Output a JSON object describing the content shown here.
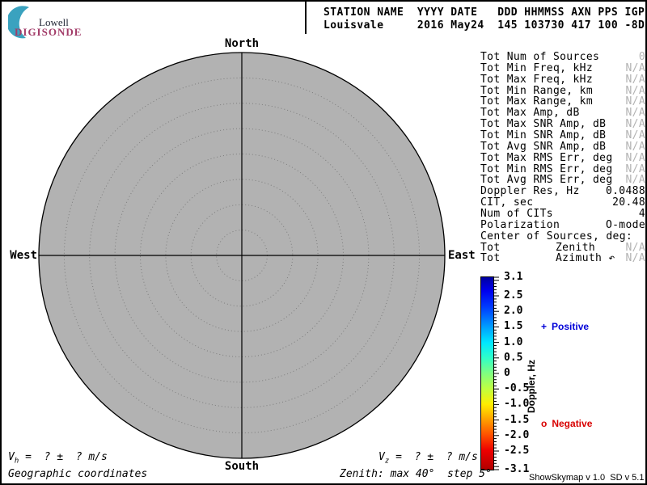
{
  "logo": {
    "line1": "Lowell",
    "line2": "DIGISONDE",
    "crescent_color": "#3aa2bf",
    "line1_color": "#1f2433",
    "line2_color": "#a23b68"
  },
  "header": {
    "line1": "STATION NAME  YYYY DATE   DDD HHMMSS AXN PPS IGP",
    "line2": "Louisvale     2016 May24  145 103730 417 100 -8D"
  },
  "compass": {
    "north": "North",
    "south": "South",
    "west": "West",
    "east": "East"
  },
  "stats": {
    "muted_color": "#b2b2b2",
    "rows": [
      {
        "label": "Tot Num of Sources",
        "value": "0"
      },
      {
        "label": "Tot Min Freq, kHz",
        "value": "N/A"
      },
      {
        "label": "Tot Max Freq, kHz",
        "value": "N/A"
      },
      {
        "label": "Tot Min Range, km",
        "value": "N/A"
      },
      {
        "label": "Tot Max Range, km",
        "value": "N/A"
      },
      {
        "label": "Tot Max Amp, dB",
        "value": "N/A"
      },
      {
        "label": "Tot Max SNR Amp, dB",
        "value": "N/A"
      },
      {
        "label": "Tot Min SNR Amp, dB",
        "value": "N/A"
      },
      {
        "label": "Tot Avg SNR Amp, dB",
        "value": "N/A"
      },
      {
        "label": "Tot Max RMS Err, deg",
        "value": "N/A"
      },
      {
        "label": "Tot Min RMS Err, deg",
        "value": "N/A"
      },
      {
        "label": "Tot Avg RMS Err, deg",
        "value": "N/A"
      },
      {
        "label": "Doppler Res, Hz",
        "value": "0.0488"
      },
      {
        "label": "CIT, sec",
        "value": "20.48"
      },
      {
        "label": "Num of CITs",
        "value": "4"
      },
      {
        "label": "Polarization",
        "value": "O-mode"
      },
      {
        "label": "Center of Sources, deg:",
        "value": ""
      },
      {
        "label": "Tot",
        "mid": "Zenith",
        "value": "N/A"
      },
      {
        "label": "Tot",
        "mid": "Azimuth ↶",
        "value": "N/A"
      }
    ]
  },
  "colorbar": {
    "axis_label": "Doppler, Hz",
    "ticks": [
      "3.1",
      "2.5",
      "2.0",
      "1.5",
      "1.0",
      "0.5",
      "0",
      "-0.5",
      "-1.0",
      "-1.5",
      "-2.0",
      "-2.5",
      "-3.1"
    ],
    "positive": {
      "symbol": "+",
      "label": "Positive",
      "color": "#0000d8"
    },
    "negative": {
      "symbol": "o",
      "label": "Negative",
      "color": "#d80000"
    }
  },
  "footer": {
    "vh": {
      "var": "V",
      "sub": "h",
      "rest": " =  ? ±  ? m/s"
    },
    "vz": {
      "var": "V",
      "sub": "z",
      "rest": " =  ? ±  ? m/s"
    },
    "coordinates_note": "Geographic coordinates",
    "zenith_note": "Zenith: max 40°  step 5°",
    "version": "ShowSkymap v 1.0  SD v 5.1"
  },
  "chart_data": {
    "type": "polar-skymap",
    "station": "Louisvale",
    "datetime": "2016 May24 145 103730",
    "zenith_max_deg": 40,
    "zenith_step_deg": 5,
    "compass_labels": [
      "North",
      "East",
      "South",
      "West"
    ],
    "num_sources": 0,
    "sources": [],
    "doppler_hz_range": [
      -3.1,
      3.1
    ],
    "colorbar_orientation": "vertical, blue (positive) top to red (negative) bottom",
    "grid": "dotted concentric circles every 5 deg zenith, solid N-S and E-W crosshair"
  }
}
